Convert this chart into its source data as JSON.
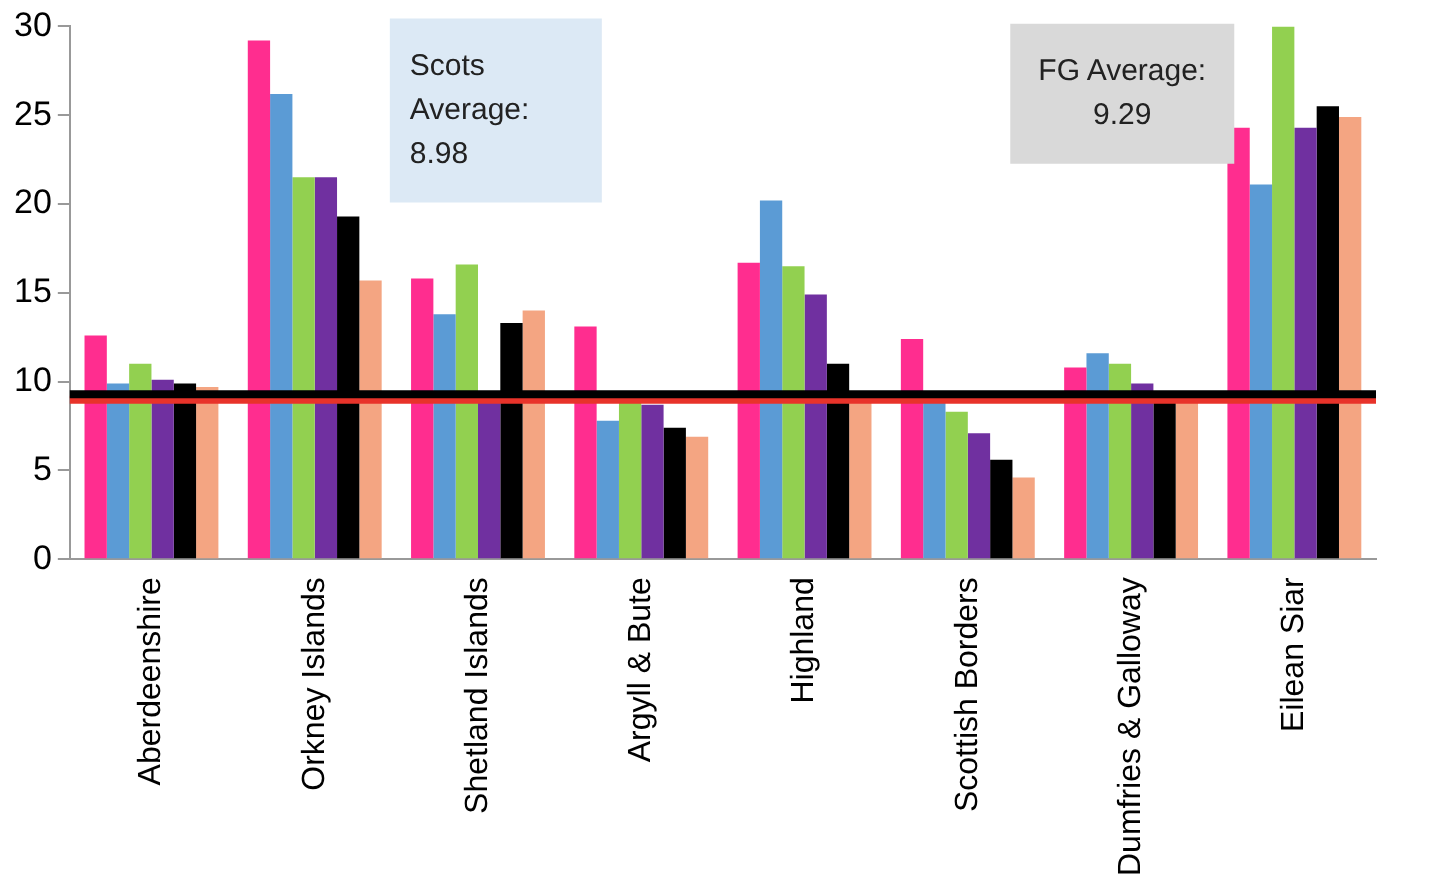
{
  "chart_data": {
    "type": "bar",
    "categories": [
      "Aberdeenshire",
      "Orkney Islands",
      "Shetland Islands",
      "Argyll & Bute",
      "Highland",
      "Scottish Borders",
      "Dumfries & Galloway",
      "Eilean Siar"
    ],
    "series": [
      {
        "color": "#ff2d8f",
        "values": [
          12.6,
          29.2,
          15.8,
          13.1,
          16.7,
          12.4,
          10.8,
          24.3
        ]
      },
      {
        "color": "#5b9bd5",
        "values": [
          9.9,
          26.2,
          13.8,
          7.8,
          20.2,
          9,
          11.6,
          21.1
        ]
      },
      {
        "color": "#92d050",
        "values": [
          11,
          21.5,
          16.6,
          9,
          16.5,
          8.3,
          11,
          30
        ]
      },
      {
        "color": "#7030a0",
        "values": [
          10.1,
          21.5,
          9,
          8.7,
          14.9,
          7.1,
          9.9,
          24.3
        ]
      },
      {
        "color": "#000000",
        "values": [
          9.9,
          19.3,
          13.3,
          7.4,
          11,
          5.6,
          9,
          25.5
        ]
      },
      {
        "color": "#f4a582",
        "values": [
          9.7,
          15.7,
          14,
          6.9,
          9,
          4.6,
          9,
          24.9
        ]
      }
    ],
    "ylim": [
      0,
      30
    ],
    "yticks": [
      0,
      5,
      10,
      15,
      20,
      25,
      30
    ],
    "grid": false,
    "legend": false,
    "annotations": [
      "Scots Average: 8.98",
      "FG Average: 9.29"
    ],
    "ref_lines": [
      {
        "axis": "y",
        "value": 8.98,
        "color": "#e8332a"
      },
      {
        "axis": "y",
        "value": 9.29,
        "color": "#000000"
      }
    ]
  }
}
